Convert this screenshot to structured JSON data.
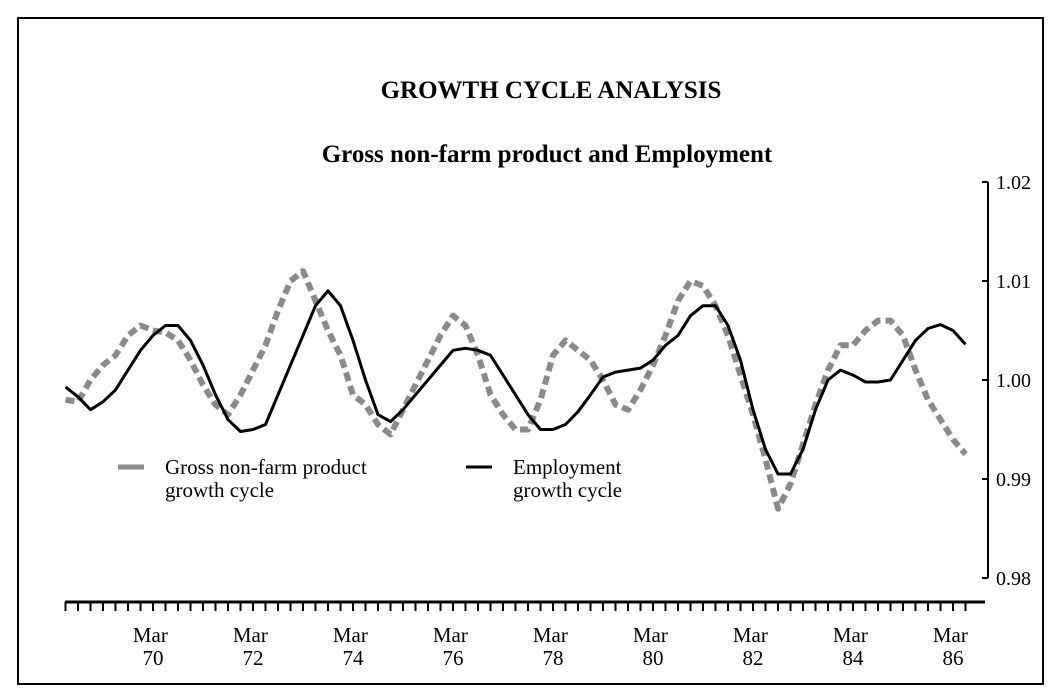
{
  "chart_data": {
    "type": "line",
    "title": "GROWTH CYCLE ANALYSIS",
    "subtitle": "Gross non-farm product and Employment",
    "categories": [
      null,
      null,
      null,
      null,
      null,
      null,
      null,
      "Mar 70",
      null,
      null,
      null,
      null,
      null,
      null,
      null,
      "Mar 72",
      null,
      null,
      null,
      null,
      null,
      null,
      null,
      "Mar 74",
      null,
      null,
      null,
      null,
      null,
      null,
      null,
      "Mar 76",
      null,
      null,
      null,
      null,
      null,
      null,
      null,
      "Mar 78",
      null,
      null,
      null,
      null,
      null,
      null,
      null,
      "Mar 80",
      null,
      null,
      null,
      null,
      null,
      null,
      null,
      "Mar 82",
      null,
      null,
      null,
      null,
      null,
      null,
      null,
      "Mar 84",
      null,
      null,
      null,
      null,
      null,
      null,
      null,
      "Mar 86",
      null
    ],
    "series": [
      {
        "name": "Gross non-farm product growth cycle",
        "color": "#8a8a8a",
        "style": "hatched",
        "values": [
          0.998,
          0.9978,
          1.0,
          1.0015,
          1.0025,
          1.0045,
          1.0055,
          1.005,
          1.0048,
          1.004,
          1.002,
          0.9995,
          0.9975,
          0.9965,
          0.9985,
          1.001,
          1.0035,
          1.007,
          1.01,
          1.011,
          1.008,
          1.005,
          1.0025,
          0.9985,
          0.9975,
          0.9955,
          0.9945,
          0.997,
          0.9995,
          1.002,
          1.0045,
          1.0065,
          1.0055,
          1.0025,
          0.9985,
          0.9965,
          0.995,
          0.995,
          0.998,
          1.0025,
          1.004,
          1.003,
          1.002,
          1.0,
          0.9975,
          0.997,
          0.999,
          1.0015,
          1.0045,
          1.008,
          1.01,
          1.0095,
          1.0075,
          1.0045,
          1.0005,
          0.9965,
          0.992,
          0.987,
          0.9895,
          0.9935,
          0.9975,
          1.001,
          1.0035,
          1.0035,
          1.005,
          1.006,
          1.006,
          1.0045,
          1.001,
          0.998,
          0.996,
          0.994,
          0.9925
        ]
      },
      {
        "name": "Employment growth cycle",
        "color": "#000000",
        "style": "solid",
        "values": [
          0.9993,
          0.9983,
          0.997,
          0.9978,
          0.999,
          1.001,
          1.003,
          1.0045,
          1.0055,
          1.0055,
          1.004,
          1.0015,
          0.9985,
          0.996,
          0.9948,
          0.995,
          0.9955,
          0.9985,
          1.0015,
          1.0045,
          1.0075,
          1.009,
          1.0075,
          1.004,
          1.0,
          0.9965,
          0.9958,
          0.997,
          0.9985,
          1.0,
          1.0015,
          1.003,
          1.0032,
          1.003,
          1.0025,
          1.0005,
          0.9985,
          0.9965,
          0.995,
          0.995,
          0.9955,
          0.9968,
          0.9985,
          1.0003,
          1.0008,
          1.001,
          1.0012,
          1.002,
          1.0035,
          1.0045,
          1.0065,
          1.0075,
          1.0075,
          1.0055,
          1.002,
          0.997,
          0.993,
          0.9905,
          0.9905,
          0.993,
          0.997,
          1.0,
          1.001,
          1.0005,
          0.9998,
          0.9998,
          1.0,
          1.002,
          1.004,
          1.0052,
          1.0056,
          1.005,
          1.0036
        ]
      }
    ],
    "ylim": [
      0.98,
      1.02
    ],
    "yticks": [
      0.98,
      0.99,
      {
        "value": 1.0,
        "label": "1.00"
      },
      1.01,
      1.02
    ],
    "yaxis_side": "right",
    "grid": false,
    "legend": "lower left"
  }
}
